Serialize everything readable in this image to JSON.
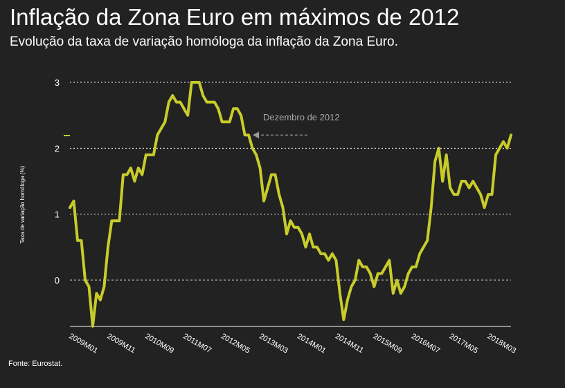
{
  "title": "Inflação da Zona Euro em máximos de 2012",
  "subtitle": "Evolução da taxa de variação homóloga da inflação da Zona Euro.",
  "source": "Fonte: Eurostat.",
  "chart_data": {
    "type": "line",
    "ylabel": "Taxa de variação homóloga (%)",
    "ylim": [
      -0.7,
      3
    ],
    "yticks": [
      0,
      1,
      2,
      3
    ],
    "grid": true,
    "x_tick_labels": [
      "2009M01",
      "2009M11",
      "2010M09",
      "2011M07",
      "2012M05",
      "2013M03",
      "2014M01",
      "2014M11",
      "2015M09",
      "2016M07",
      "2017M05",
      "2018M03"
    ],
    "x_tick_index": [
      0,
      10,
      20,
      30,
      40,
      50,
      60,
      70,
      80,
      90,
      100,
      110
    ],
    "annotation": {
      "text": "Dezembro de 2012",
      "target_index": 47,
      "target_value": 2.2
    },
    "line_color": "#c8cc2a",
    "series": [
      {
        "name": "",
        "values": [
          1.1,
          1.2,
          0.6,
          0.6,
          0.0,
          -0.1,
          -0.7,
          -0.2,
          -0.3,
          -0.1,
          0.5,
          0.9,
          0.9,
          0.9,
          1.6,
          1.6,
          1.7,
          1.5,
          1.7,
          1.6,
          1.9,
          1.9,
          1.9,
          2.2,
          2.3,
          2.4,
          2.7,
          2.8,
          2.7,
          2.7,
          2.6,
          2.5,
          3.0,
          3.0,
          3.0,
          2.8,
          2.7,
          2.7,
          2.7,
          2.6,
          2.4,
          2.4,
          2.4,
          2.6,
          2.6,
          2.5,
          2.2,
          2.2,
          2.0,
          1.9,
          1.7,
          1.2,
          1.4,
          1.6,
          1.6,
          1.3,
          1.1,
          0.7,
          0.9,
          0.8,
          0.8,
          0.7,
          0.5,
          0.7,
          0.5,
          0.5,
          0.4,
          0.4,
          0.3,
          0.4,
          0.3,
          -0.2,
          -0.6,
          -0.3,
          -0.1,
          0.0,
          0.3,
          0.2,
          0.2,
          0.1,
          -0.1,
          0.1,
          0.1,
          0.2,
          0.3,
          -0.2,
          0.0,
          -0.2,
          -0.1,
          0.1,
          0.2,
          0.2,
          0.4,
          0.5,
          0.6,
          1.1,
          1.8,
          2.0,
          1.5,
          1.9,
          1.4,
          1.3,
          1.3,
          1.5,
          1.5,
          1.4,
          1.5,
          1.4,
          1.3,
          1.1,
          1.3,
          1.3,
          1.9,
          2.0,
          2.1,
          2.0,
          2.2
        ]
      }
    ]
  }
}
